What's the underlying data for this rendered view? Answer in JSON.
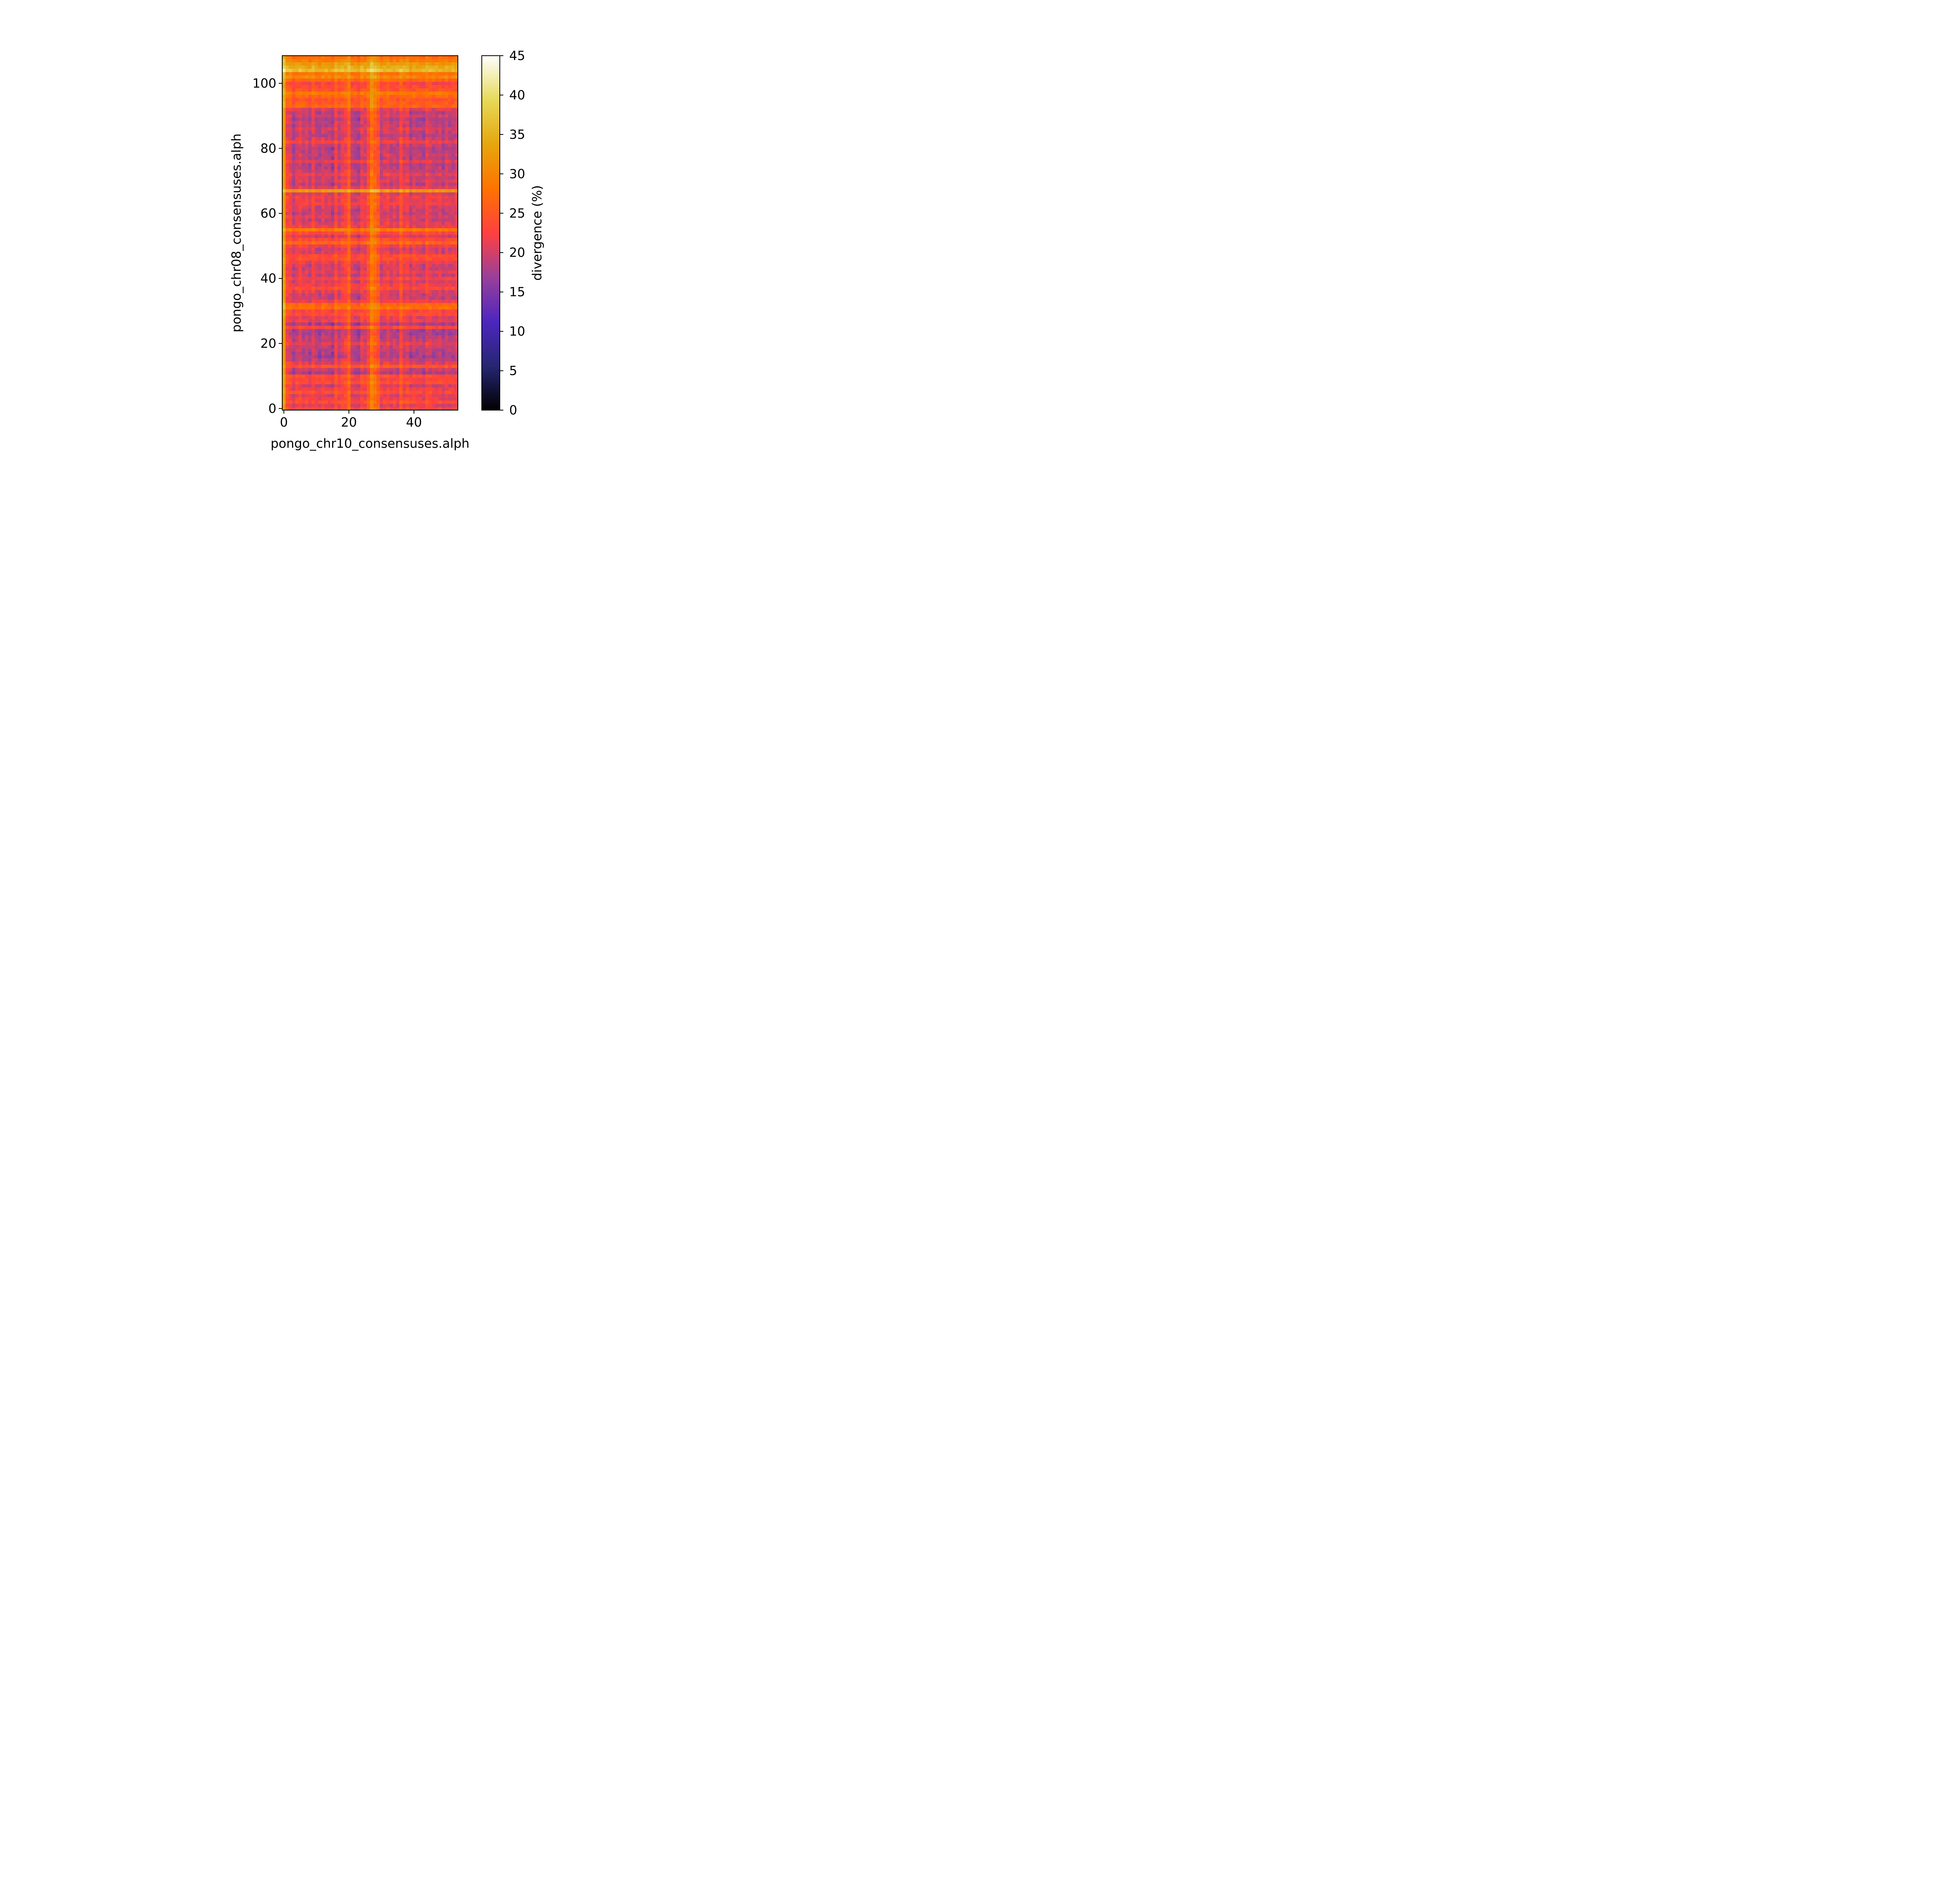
{
  "chart_data": {
    "type": "heatmap",
    "title": "",
    "xlabel": "pongo_chr10_consensuses.alph",
    "ylabel": "pongo_chr08_consensuses.alph",
    "colorbar_label": "divergence (%)",
    "colormap": "CMRmap",
    "xlim": [
      -0.5,
      53.5
    ],
    "ylim": [
      -0.5,
      108.5
    ],
    "n_cols": 54,
    "n_rows": 109,
    "x_ticks": [
      "0",
      "20",
      "40"
    ],
    "y_ticks": [
      "0",
      "20",
      "40",
      "60",
      "80",
      "100"
    ],
    "colorbar_ticks": [
      "0",
      "5",
      "10",
      "15",
      "20",
      "25",
      "30",
      "35",
      "40",
      "45"
    ],
    "value_range": [
      0,
      45
    ],
    "column_base_divergence": [
      33,
      24,
      23,
      20,
      22,
      23,
      21,
      22,
      20,
      23,
      21,
      20,
      22,
      21,
      21,
      19,
      24,
      21,
      23,
      24,
      27,
      21,
      20,
      19,
      23,
      22,
      25,
      30,
      28,
      26,
      21,
      22,
      23,
      21,
      22,
      21,
      25,
      22,
      23,
      20,
      22,
      21,
      21,
      20,
      23,
      22,
      21,
      21,
      22,
      20,
      22,
      21,
      21,
      22
    ],
    "row_base_divergence": [
      23,
      21,
      24,
      22,
      21,
      24,
      22,
      20,
      24,
      23,
      24,
      15,
      18,
      25,
      21,
      18,
      15,
      16,
      17,
      18,
      21,
      18,
      17,
      15,
      15,
      23,
      15,
      22,
      21,
      24,
      23,
      28,
      27,
      22,
      18,
      19,
      21,
      24,
      22,
      20,
      23,
      19,
      21,
      19,
      19,
      22,
      24,
      24,
      20,
      19,
      22,
      27,
      24,
      19,
      24,
      29,
      22,
      21,
      19,
      21,
      18,
      19,
      20,
      22,
      21,
      22,
      20,
      33,
      21,
      17,
      20,
      19,
      21,
      18,
      17,
      17,
      21,
      16,
      18,
      17,
      16,
      18,
      22,
      19,
      16,
      18,
      20,
      17,
      18,
      16,
      19,
      17,
      21,
      27,
      26,
      25,
      27,
      29,
      25,
      24,
      23,
      27,
      31,
      29,
      37,
      35,
      33,
      30,
      28
    ]
  }
}
